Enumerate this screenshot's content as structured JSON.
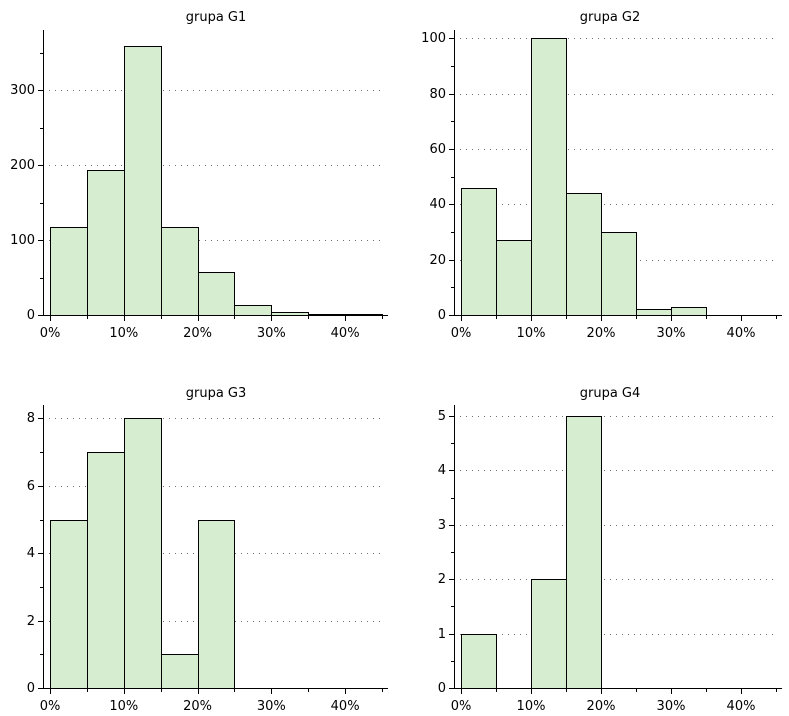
{
  "chart_data": [
    {
      "type": "bar",
      "title": "grupa G1",
      "bins": [
        "0-5%",
        "5-10%",
        "10-15%",
        "15-20%",
        "20-25%",
        "25-30%",
        "30-35%",
        "35-40%",
        "40-45%"
      ],
      "values": [
        117,
        194,
        359,
        118,
        57,
        14,
        4,
        2,
        2
      ],
      "x_ticks": [
        "0%",
        "10%",
        "20%",
        "30%",
        "40%"
      ],
      "y_ticks": [
        "0",
        "100",
        "200",
        "300"
      ],
      "xlim": [
        0,
        45
      ],
      "ylim": [
        0,
        380
      ]
    },
    {
      "type": "bar",
      "title": "grupa G2",
      "bins": [
        "0-5%",
        "5-10%",
        "10-15%",
        "15-20%",
        "20-25%",
        "25-30%",
        "30-35%"
      ],
      "values": [
        46,
        27,
        100,
        44,
        30,
        2,
        3
      ],
      "x_ticks": [
        "0%",
        "10%",
        "20%",
        "30%",
        "40%"
      ],
      "y_ticks": [
        "0",
        "20",
        "40",
        "60",
        "80",
        "100"
      ],
      "xlim": [
        0,
        45
      ],
      "ylim": [
        0,
        103
      ]
    },
    {
      "type": "bar",
      "title": "grupa G3",
      "bins": [
        "0-5%",
        "5-10%",
        "10-15%",
        "15-20%",
        "20-25%"
      ],
      "values": [
        5,
        7,
        8,
        1,
        5
      ],
      "x_ticks": [
        "0%",
        "10%",
        "20%",
        "30%",
        "40%"
      ],
      "y_ticks": [
        "0",
        "2",
        "4",
        "6",
        "8"
      ],
      "xlim": [
        0,
        45
      ],
      "ylim": [
        0,
        8.4
      ]
    },
    {
      "type": "bar",
      "title": "grupa G4",
      "bins": [
        "0-5%",
        "5-10%",
        "10-15%",
        "15-20%"
      ],
      "values": [
        1,
        0,
        2,
        5
      ],
      "x_ticks": [
        "0%",
        "10%",
        "20%",
        "30%",
        "40%"
      ],
      "y_ticks": [
        "0",
        "1",
        "2",
        "3",
        "4",
        "5"
      ],
      "xlim": [
        0,
        45
      ],
      "ylim": [
        0,
        5.2
      ]
    }
  ]
}
